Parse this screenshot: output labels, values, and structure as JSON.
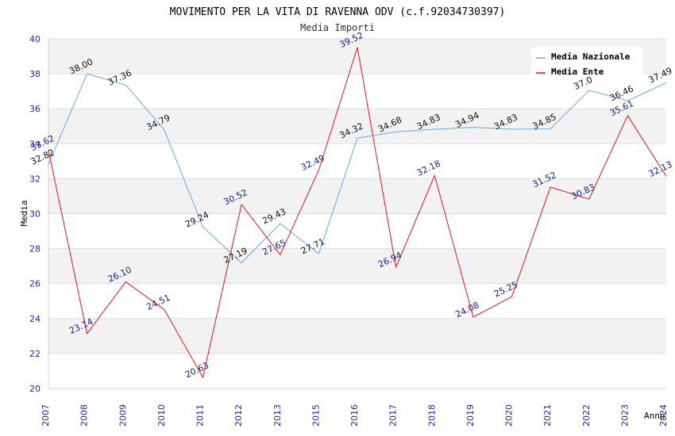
{
  "chart_data": {
    "type": "line",
    "title": "MOVIMENTO PER LA VITA DI RAVENNA ODV (c.f.92034730397)",
    "subtitle": "Media Importi",
    "xlabel": "Anno",
    "ylabel": "Media",
    "ylim": [
      20,
      40
    ],
    "yticks": [
      20,
      22,
      24,
      26,
      28,
      30,
      32,
      34,
      36,
      38,
      40
    ],
    "grid": true,
    "legend_position": "top-right",
    "categories": [
      "2007",
      "2008",
      "2009",
      "2010",
      "2011",
      "2012",
      "2013",
      "2015",
      "2016",
      "2017",
      "2018",
      "2019",
      "2020",
      "2021",
      "2022",
      "2023",
      "2024"
    ],
    "series": [
      {
        "name": "Media Nazionale",
        "color": "#6aa8e8",
        "values": [
          32.82,
          38.0,
          37.36,
          34.79,
          29.24,
          27.19,
          29.43,
          27.71,
          34.32,
          34.68,
          34.83,
          34.94,
          34.83,
          34.85,
          37.05,
          36.46,
          37.49
        ],
        "labels": [
          "32.82",
          "38.00",
          "37.36",
          "34.79",
          "29.24",
          "27.19",
          "29.43",
          "27.71",
          "34.32",
          "34.68",
          "34.83",
          "34.94",
          "34.83",
          "34.85",
          "37.0",
          "36.46",
          "37.49"
        ]
      },
      {
        "name": "Media Ente",
        "color": "#e8141e",
        "values": [
          33.62,
          23.14,
          26.1,
          24.51,
          20.63,
          30.52,
          27.65,
          32.49,
          39.52,
          26.94,
          32.18,
          24.08,
          25.25,
          31.52,
          30.83,
          35.61,
          32.13
        ],
        "labels": [
          "33.62",
          "23.14",
          "26.10",
          "24.51",
          "20.63",
          "30.52",
          "27.65",
          "32.49",
          "39.52",
          "26.94",
          "32.18",
          "24.08",
          "25.25",
          "31.52",
          "30.83",
          "35.61",
          "32.13"
        ]
      }
    ]
  }
}
